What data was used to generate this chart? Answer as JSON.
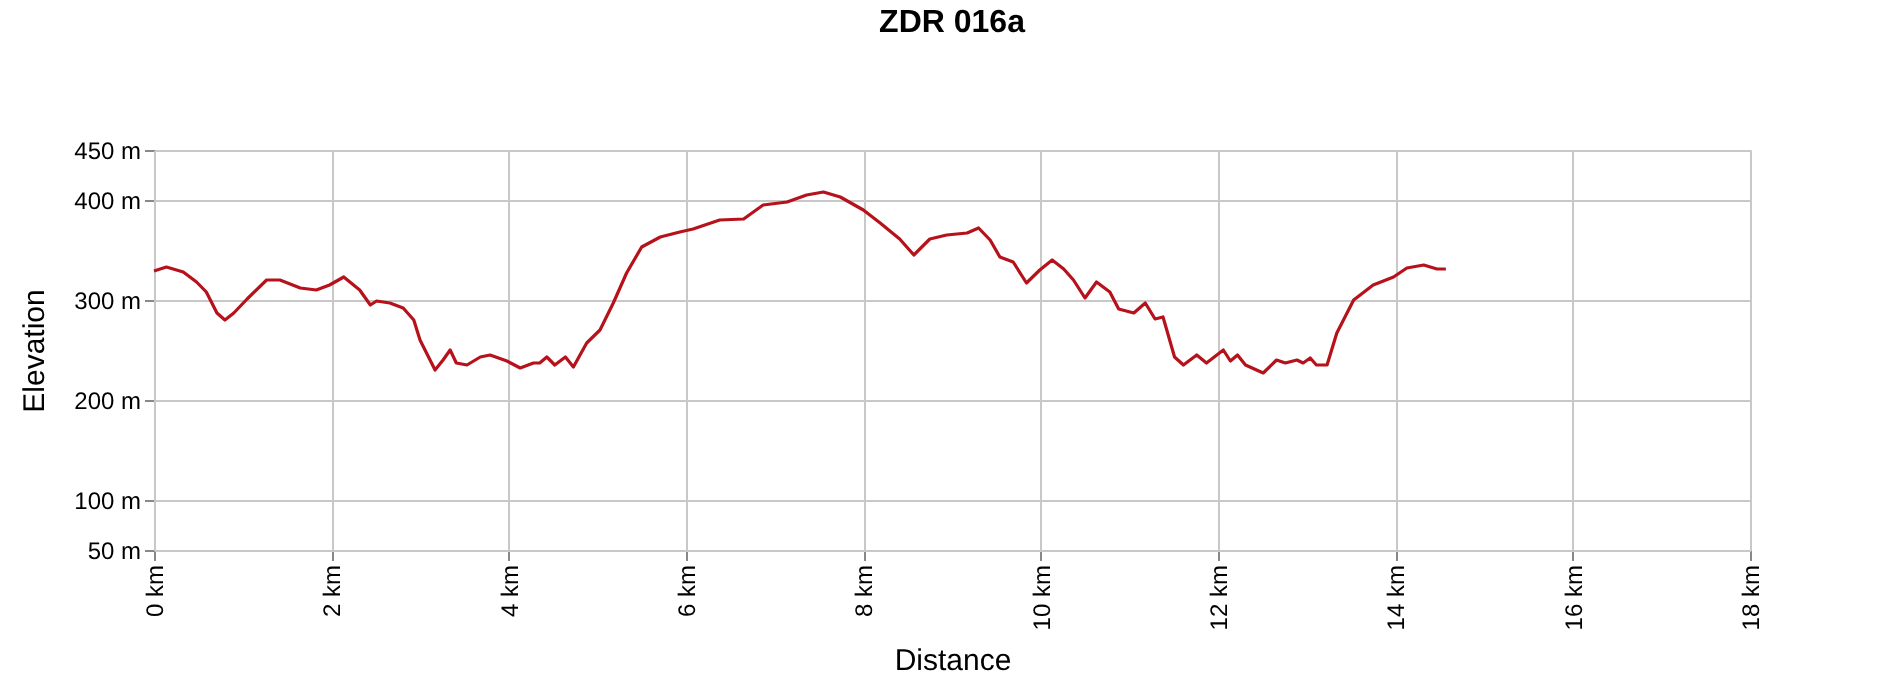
{
  "chart_data": {
    "type": "line",
    "title": "ZDR 016a",
    "xlabel": "Distance",
    "ylabel": "Elevation",
    "x": [
      0,
      0.14,
      0.33,
      0.48,
      0.59,
      0.71,
      0.8,
      0.9,
      1.05,
      1.27,
      1.42,
      1.65,
      1.83,
      1.98,
      2.14,
      2.32,
      2.44,
      2.51,
      2.66,
      2.81,
      2.93,
      3.0,
      3.17,
      3.26,
      3.34,
      3.41,
      3.53,
      3.68,
      3.79,
      3.98,
      4.13,
      4.28,
      4.35,
      4.43,
      4.52,
      4.64,
      4.73,
      4.88,
      5.03,
      5.18,
      5.33,
      5.5,
      5.71,
      5.93,
      6.08,
      6.38,
      6.65,
      6.87,
      7.14,
      7.36,
      7.55,
      7.74,
      8.0,
      8.19,
      8.41,
      8.57,
      8.75,
      8.94,
      9.17,
      9.3,
      9.43,
      9.54,
      9.69,
      9.84,
      9.99,
      10.13,
      10.26,
      10.37,
      10.5,
      10.63,
      10.78,
      10.88,
      11.05,
      11.18,
      11.29,
      11.38,
      11.51,
      11.61,
      11.76,
      11.87,
      12.06,
      12.14,
      12.22,
      12.31,
      12.51,
      12.66,
      12.76,
      12.89,
      12.96,
      13.04,
      13.11,
      13.23,
      13.34,
      13.53,
      13.75,
      13.98,
      14.13,
      14.32,
      14.47,
      14.57
    ],
    "series": [
      {
        "color": "#b5121b",
        "values": [
          329,
          333,
          328,
          318,
          308,
          287,
          280,
          287,
          301,
          320,
          320,
          312,
          310,
          315,
          323,
          310,
          295,
          299,
          297,
          292,
          280,
          260,
          230,
          240,
          250,
          237,
          235,
          243,
          245,
          239,
          232,
          237,
          237,
          243,
          235,
          243,
          233,
          257,
          270,
          297,
          327,
          353,
          363,
          368,
          371,
          380,
          381,
          395,
          398,
          405,
          408,
          403,
          390,
          377,
          361,
          345,
          361,
          365,
          367,
          372,
          360,
          343,
          338,
          317,
          330,
          340,
          331,
          320,
          302,
          318,
          308,
          291,
          287,
          297,
          281,
          283,
          243,
          235,
          245,
          237,
          250,
          239,
          245,
          235,
          227,
          240,
          237,
          240,
          237,
          242,
          235,
          235,
          267,
          300,
          315,
          323,
          332,
          335,
          331,
          331
        ]
      }
    ],
    "xlim": [
      0,
      18
    ],
    "xticks": [
      {
        "value": 0,
        "label": "0 km"
      },
      {
        "value": 2,
        "label": "2 km"
      },
      {
        "value": 4,
        "label": "4 km"
      },
      {
        "value": 6,
        "label": "6 km"
      },
      {
        "value": 8,
        "label": "8 km"
      },
      {
        "value": 10,
        "label": "10 km"
      },
      {
        "value": 12,
        "label": "12 km"
      },
      {
        "value": 14,
        "label": "14 km"
      },
      {
        "value": 16,
        "label": "16 km"
      },
      {
        "value": 18,
        "label": "18 km"
      }
    ],
    "ylim": [
      50,
      450
    ],
    "yticks": [
      {
        "value": 50,
        "label": "50 m"
      },
      {
        "value": 100,
        "label": "100 m"
      },
      {
        "value": 200,
        "label": "200 m"
      },
      {
        "value": 300,
        "label": "300 m"
      },
      {
        "value": 400,
        "label": "400 m"
      },
      {
        "value": 450,
        "label": "450 m"
      }
    ],
    "grid": true,
    "marker": "none",
    "line_style": "solid"
  }
}
